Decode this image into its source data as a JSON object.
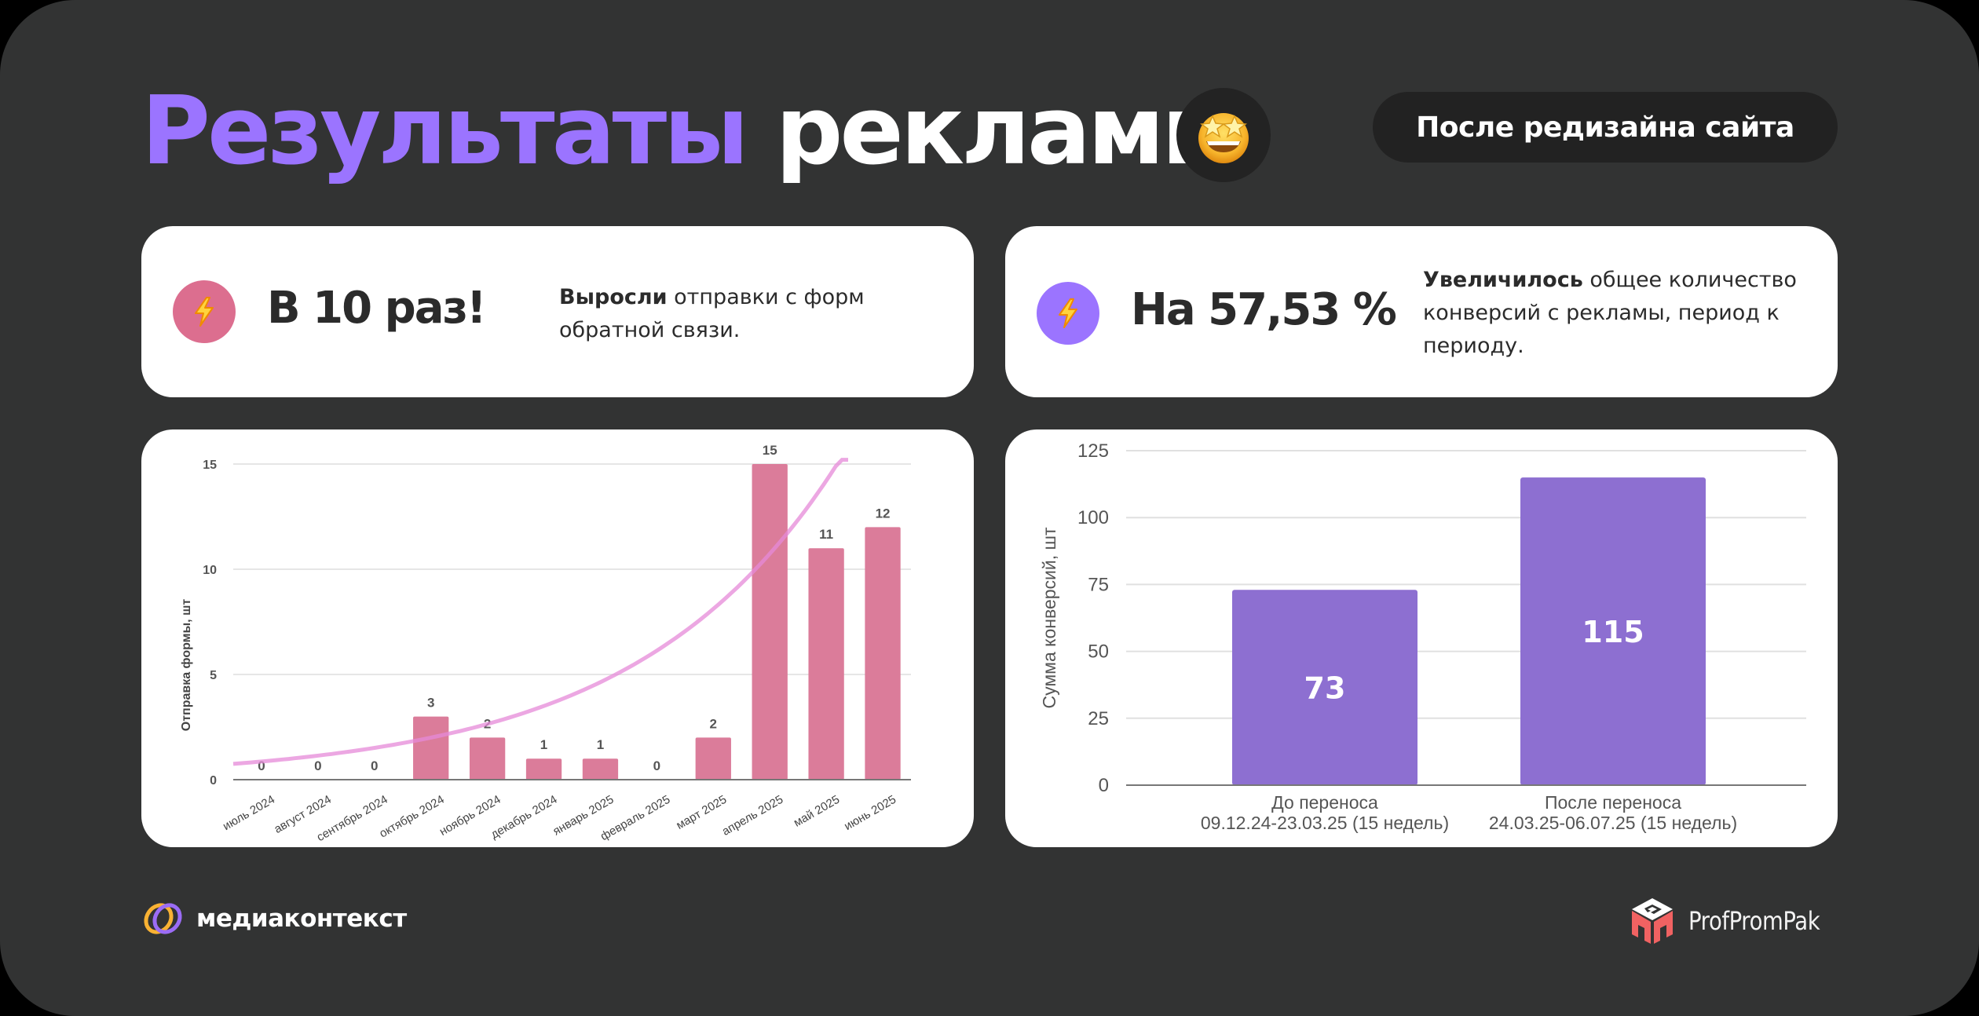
{
  "header": {
    "title_accent": "Результаты",
    "title_rest": "рекламы",
    "emoji": "🤩",
    "emoji_name": "star-struck-emoji",
    "pill_label": "После редизайна сайта"
  },
  "colors": {
    "background": "#323333",
    "accent_purple": "#9b74ff",
    "pink_icon": "#dc6e8f",
    "purple_icon": "#9b74ff",
    "pink_bar": "#db7c9a",
    "trend_line": "#e58ad8",
    "purple_bar": "#8d6fd1",
    "card": "#ffffff",
    "pill": "#222222"
  },
  "stats": [
    {
      "icon": "lightning-icon",
      "icon_glyph": "⚡",
      "value": "В 10 раз!",
      "desc_bold": "Выросли",
      "desc_rest": " отправки с форм обратной связи."
    },
    {
      "icon": "lightning-icon",
      "icon_glyph": "⚡",
      "value": "На 57,53 %",
      "desc_bold": "Увеличилось",
      "desc_rest": " общее количество конверсий с рекламы, период к периоду."
    }
  ],
  "chart_data": [
    {
      "type": "bar",
      "title": "",
      "xlabel": "",
      "ylabel": "Отправка формы, шт",
      "ylim": [
        0,
        15
      ],
      "yticks": [
        0,
        5,
        10,
        15
      ],
      "grid": true,
      "legend": "none",
      "categories": [
        "июль 2024",
        "август 2024",
        "сентябрь 2024",
        "октябрь 2024",
        "ноябрь 2024",
        "декабрь 2024",
        "январь 2025",
        "февраль 2025",
        "март 2025",
        "апрель 2025",
        "май 2025",
        "июнь 2025"
      ],
      "values": [
        0,
        0,
        0,
        3,
        2,
        1,
        1,
        0,
        2,
        15,
        11,
        12
      ],
      "data_labels": true,
      "trendline": {
        "type": "exponential",
        "color": "#e58ad8"
      }
    },
    {
      "type": "bar",
      "title": "",
      "xlabel": "",
      "ylabel": "Сумма конверсий, шт",
      "ylim": [
        0,
        125
      ],
      "yticks": [
        0,
        25,
        50,
        75,
        100,
        125
      ],
      "grid": true,
      "legend": "none",
      "categories": [
        "До переноса\n09.12.24-23.03.25 (15 недель)",
        "После переноса\n24.03.25-06.07.25 (15 недель)"
      ],
      "category_lines": [
        [
          "До переноса",
          "09.12.24-23.03.25 (15 недель)"
        ],
        [
          "После переноса",
          "24.03.25-06.07.25 (15 недель)"
        ]
      ],
      "values": [
        73,
        115
      ],
      "data_labels": true
    }
  ],
  "footer": {
    "left_brand": "медиаконтекст",
    "right_brand": "ProfPromPak"
  }
}
